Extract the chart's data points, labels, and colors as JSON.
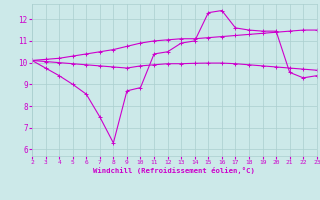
{
  "xlabel": "Windchill (Refroidissement éolien,°C)",
  "xlim": [
    2,
    23
  ],
  "ylim": [
    5.7,
    12.7
  ],
  "yticks": [
    6,
    7,
    8,
    9,
    10,
    11,
    12
  ],
  "xticks": [
    2,
    3,
    4,
    5,
    6,
    7,
    8,
    9,
    10,
    11,
    12,
    13,
    14,
    15,
    16,
    17,
    18,
    19,
    20,
    21,
    22,
    23
  ],
  "bg_color": "#cce9e9",
  "grid_color": "#aacfcf",
  "line_color": "#cc00cc",
  "line1_x": [
    2,
    3,
    4,
    5,
    6,
    7,
    8,
    9,
    10,
    11,
    12,
    13,
    14,
    15,
    16,
    17,
    18,
    19,
    20,
    21,
    22,
    23
  ],
  "line1_y": [
    10.1,
    10.15,
    10.2,
    10.3,
    10.4,
    10.5,
    10.6,
    10.75,
    10.9,
    11.0,
    11.05,
    11.1,
    11.1,
    11.15,
    11.2,
    11.25,
    11.3,
    11.35,
    11.4,
    11.45,
    11.5,
    11.5
  ],
  "line2_x": [
    2,
    3,
    4,
    5,
    6,
    7,
    8,
    9,
    10,
    11,
    12,
    13,
    14,
    15,
    16,
    17,
    18,
    19,
    20,
    21,
    22,
    23
  ],
  "line2_y": [
    10.1,
    10.05,
    10.0,
    9.95,
    9.9,
    9.85,
    9.8,
    9.75,
    9.85,
    9.9,
    9.95,
    9.95,
    9.97,
    9.98,
    9.98,
    9.95,
    9.9,
    9.85,
    9.8,
    9.75,
    9.7,
    9.65
  ],
  "line3_x": [
    2,
    3,
    4,
    5,
    6,
    7,
    8,
    9,
    10,
    11,
    12,
    13,
    14,
    15,
    16,
    17,
    18,
    19,
    20,
    21,
    22,
    23
  ],
  "line3_y": [
    10.1,
    9.75,
    9.4,
    9.0,
    8.55,
    7.5,
    6.3,
    8.7,
    8.85,
    10.4,
    10.5,
    10.9,
    11.0,
    12.3,
    12.4,
    11.6,
    11.5,
    11.45,
    11.45,
    9.55,
    9.3,
    9.4
  ]
}
